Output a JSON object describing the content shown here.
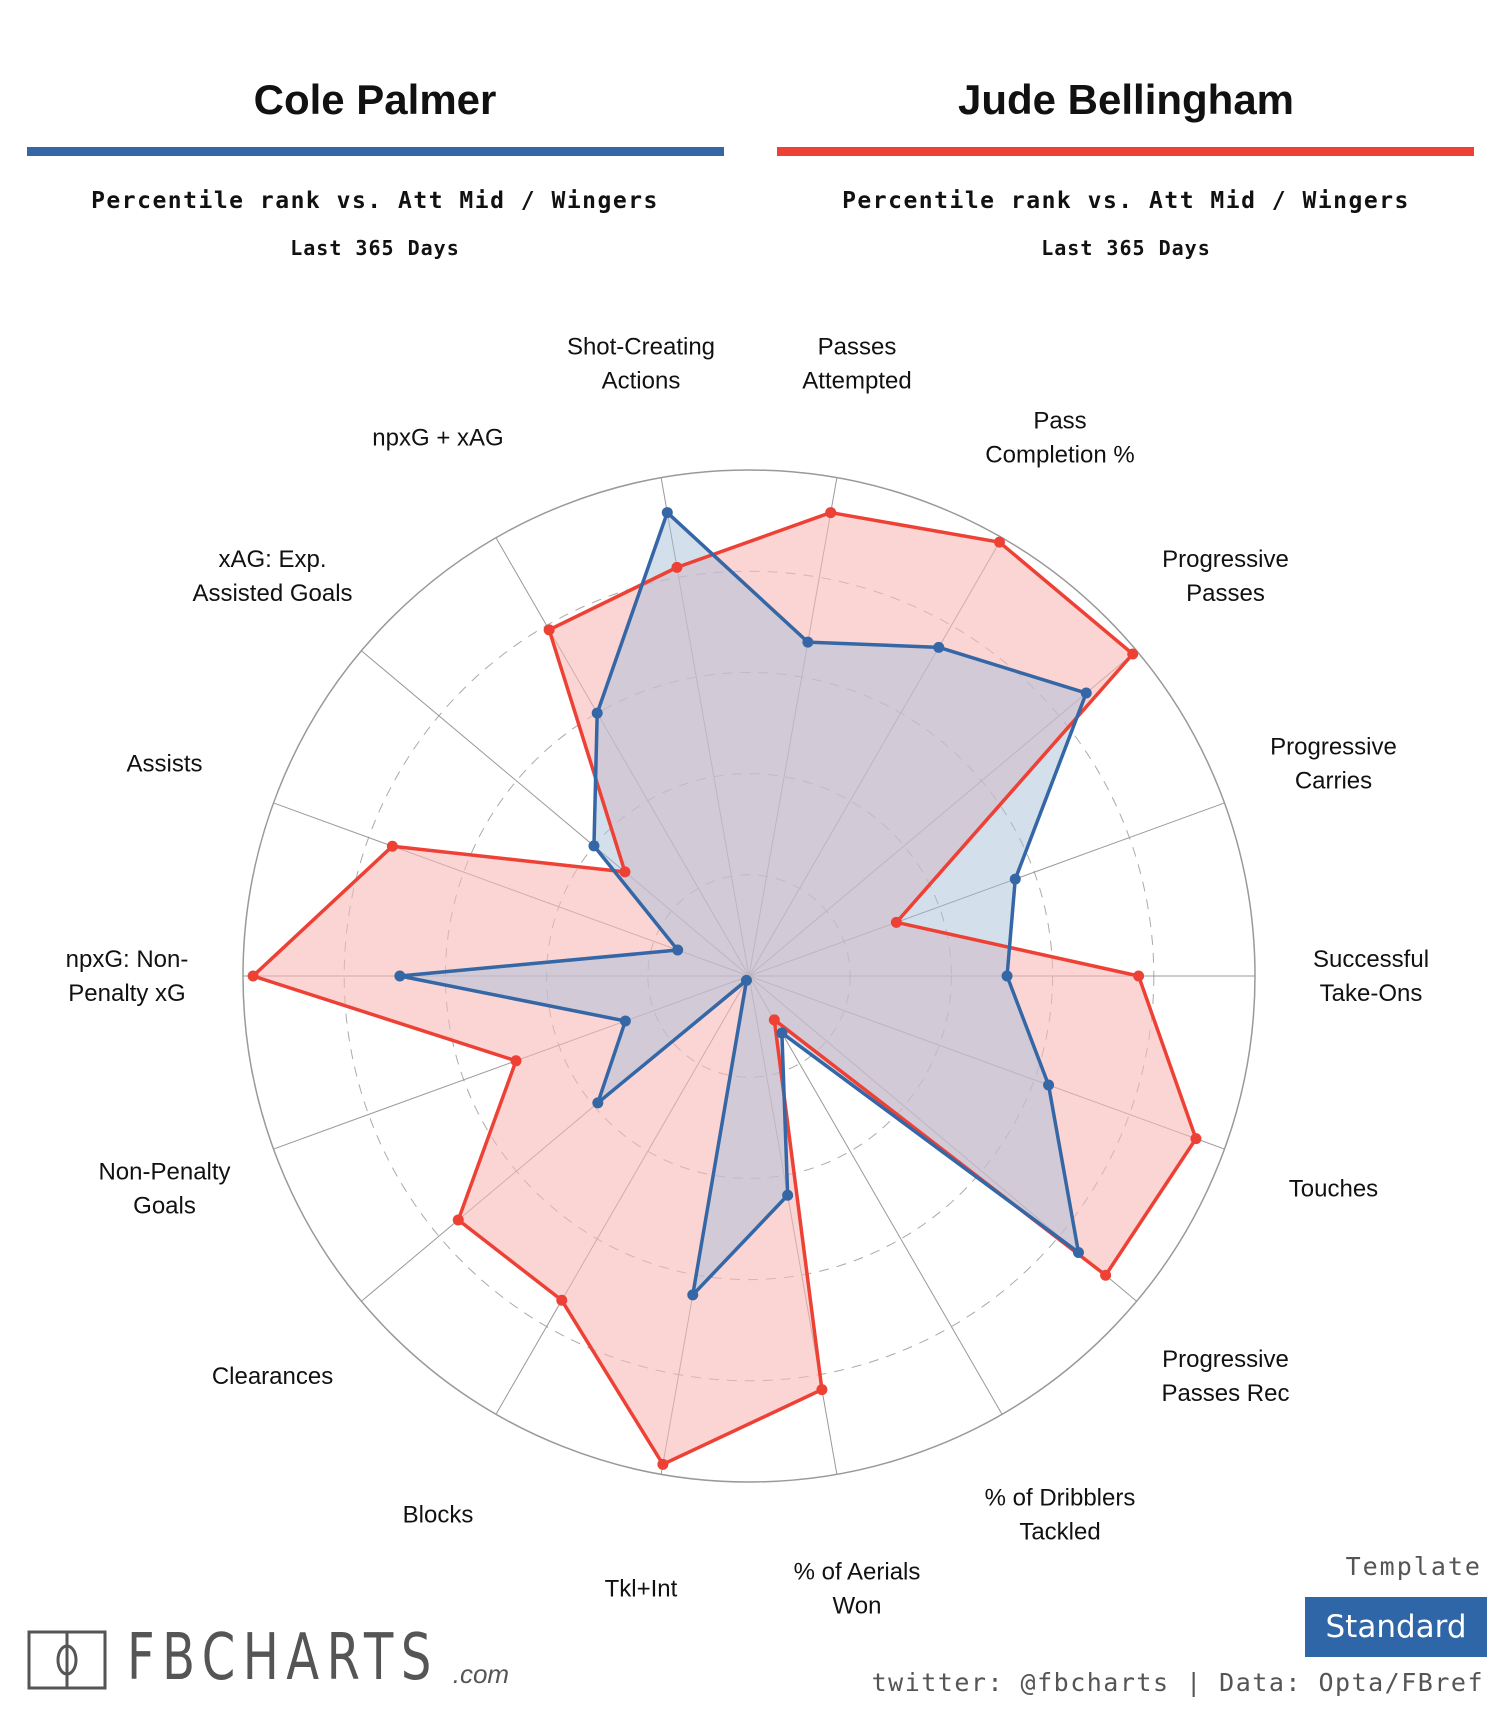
{
  "header": {
    "player1": {
      "name": "Cole Palmer",
      "subtitle": "Percentile rank vs. Att Mid / Wingers",
      "period": "Last 365 Days",
      "color": "#3567a6"
    },
    "player2": {
      "name": "Jude Bellingham",
      "subtitle": "Percentile rank vs. Att Mid / Wingers",
      "period": "Last 365 Days",
      "color": "#ee4136"
    }
  },
  "chart_data": {
    "type": "radar",
    "rlim": [
      0,
      100
    ],
    "grid_rings": [
      20,
      40,
      60,
      80,
      100
    ],
    "categories": [
      "Shot-Creating Actions",
      "Passes Attempted",
      "Pass Completion %",
      "Progressive Passes",
      "Progressive Carries",
      "Successful Take-Ons",
      "Touches",
      "Progressive Passes Rec",
      "% of Dribblers Tackled",
      "% of Aerials Won",
      "Tkl+Int",
      "Blocks",
      "Clearances",
      "Non-Penalty Goals",
      "npxG: Non-Penalty xG",
      "Assists",
      "xAG: Exp. Assisted Goals",
      "npxG + xAG"
    ],
    "category_lines": [
      [
        "Shot-Creating",
        "Actions"
      ],
      [
        "Passes",
        "Attempted"
      ],
      [
        "Pass",
        "Completion %"
      ],
      [
        "Progressive",
        "Passes"
      ],
      [
        "Progressive",
        "Carries"
      ],
      [
        "Successful",
        "Take-Ons"
      ],
      [
        "Touches"
      ],
      [
        "Progressive",
        "Passes Rec"
      ],
      [
        "% of Dribblers",
        "Tackled"
      ],
      [
        "% of Aerials",
        "Won"
      ],
      [
        "Tkl+Int"
      ],
      [
        "Blocks"
      ],
      [
        "Clearances"
      ],
      [
        "Non-Penalty",
        "Goals"
      ],
      [
        "npxG: Non-",
        "Penalty xG"
      ],
      [
        "Assists"
      ],
      [
        "xAG: Exp.",
        "Assisted Goals"
      ],
      [
        "npxG + xAG"
      ]
    ],
    "series": [
      {
        "name": "Jude Bellingham",
        "color": "#ee4136",
        "fill": "#f6b9b6",
        "values": [
          82,
          93,
          99,
          99,
          31,
          77,
          94,
          92,
          10,
          83,
          98,
          74,
          75,
          49,
          98,
          75,
          32,
          79
        ]
      },
      {
        "name": "Cole Palmer",
        "color": "#3567a6",
        "fill": "#a9c0da",
        "values": [
          93,
          67,
          75,
          87,
          56,
          51,
          63,
          85,
          13,
          44,
          64,
          1,
          39,
          26,
          69,
          15,
          40,
          60
        ]
      }
    ]
  },
  "footer": {
    "logo": "FBCHARTS",
    "logo_suffix": ".com",
    "template_label": "Template",
    "template_value": "Standard",
    "credit": "twitter: @fbcharts | Data: Opta/FBref"
  }
}
